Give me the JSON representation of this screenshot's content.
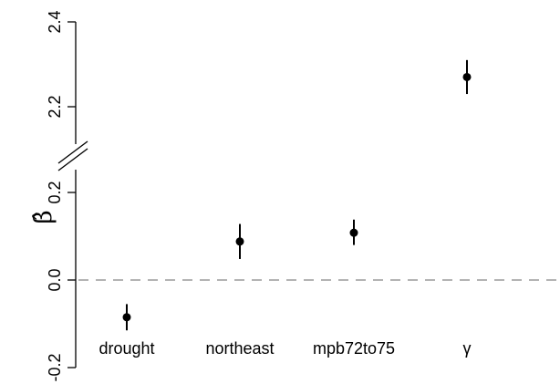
{
  "chart_data": {
    "type": "scatter",
    "title": "",
    "xlabel": "",
    "ylabel": "β̂",
    "axis_break": true,
    "y_ticks_lower": [
      "-0.2",
      "0.0",
      "0.2"
    ],
    "y_ticks_upper": [
      "2.2",
      "2.4"
    ],
    "reference_line": {
      "y": 0.0,
      "style": "dashed",
      "color": "#b3b3b3"
    },
    "categories": [
      "drought",
      "northeast",
      "mpb72to75",
      "γ"
    ],
    "points": [
      {
        "category": "drought",
        "estimate": -0.085,
        "lower": -0.115,
        "upper": -0.055
      },
      {
        "category": "northeast",
        "estimate": 0.088,
        "lower": 0.048,
        "upper": 0.128
      },
      {
        "category": "mpb72to75",
        "estimate": 0.108,
        "lower": 0.08,
        "upper": 0.138
      },
      {
        "category": "γ",
        "estimate": 2.27,
        "lower": 2.23,
        "upper": 2.31
      }
    ],
    "grid": false,
    "legend": "none"
  }
}
